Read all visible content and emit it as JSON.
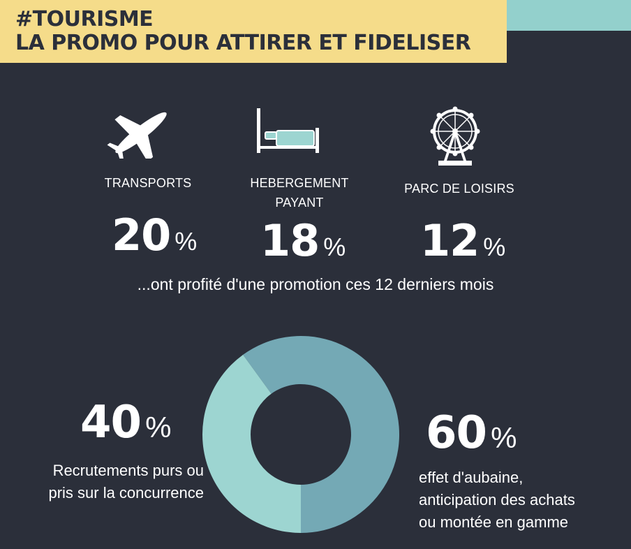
{
  "header": {
    "hashtag": "#TOURISME",
    "title": "LA PROMO POUR ATTIRER ET FIDELISER"
  },
  "categories": [
    {
      "icon": "airplane-icon",
      "label_line1": "TRANSPORTS",
      "label_line2": "",
      "value": "20",
      "unit": "%"
    },
    {
      "icon": "bed-icon",
      "label_line1": "HEBERGEMENT",
      "label_line2": "PAYANT",
      "value": "18",
      "unit": "%"
    },
    {
      "icon": "ferris-wheel-icon",
      "label_line1": "PARC DE LOISIRS",
      "label_line2": "",
      "value": "12",
      "unit": "%"
    }
  ],
  "caption": "...ont profité d'une promotion ces 12 derniers mois",
  "donut": {
    "left_value": "40",
    "left_unit": "%",
    "left_desc": [
      "Recrutements purs ou",
      "pris sur la concurrence"
    ],
    "right_value": "60",
    "right_unit": "%",
    "right_desc": [
      "effet d'aubaine,",
      "anticipation des achats",
      "ou montée en gamme"
    ]
  },
  "chart_data": {
    "type": "pie",
    "donut": true,
    "categories": [
      "effet d'aubaine, anticipation des achats ou montée en gamme",
      "Recrutements purs ou pris sur la concurrence"
    ],
    "values": [
      60,
      40
    ],
    "colors": [
      "#74a9b5",
      "#9dd5d1"
    ]
  },
  "colors": {
    "background": "#2b2f3a",
    "header": "#f5dc8a",
    "accent_teal": "#93d0cc",
    "donut_dark": "#74a9b5",
    "donut_light": "#9dd5d1"
  }
}
